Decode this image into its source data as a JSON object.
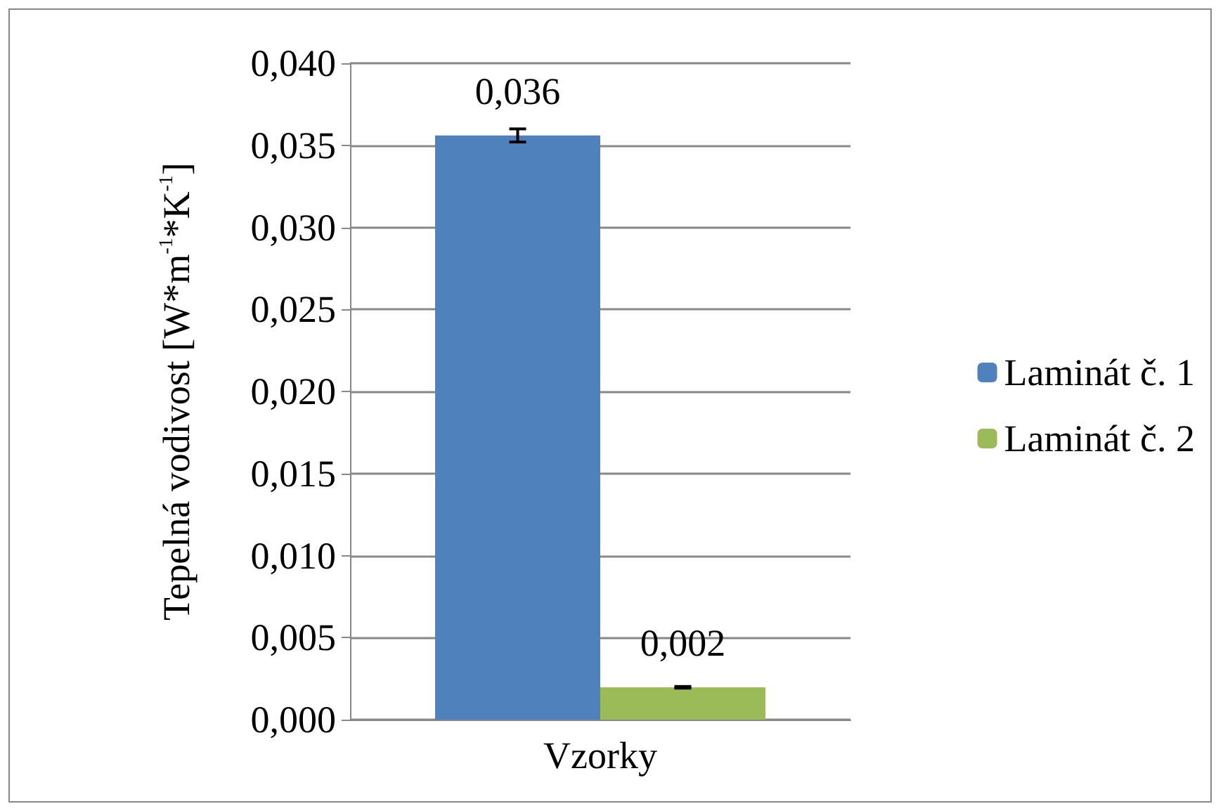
{
  "chart_data": {
    "type": "bar",
    "ylabel": "Tepelná vodivost [W*m$^{-1}$*K$^{-1}$]",
    "categories": [
      "Vzorky"
    ],
    "series": [
      {
        "name": "Laminát č. 1",
        "color": "#4f81bd",
        "values": [
          0.0356
        ],
        "errors": [
          0.0004
        ],
        "value_labels": [
          "0,036"
        ]
      },
      {
        "name": "Laminát č. 2",
        "color": "#9bbb59",
        "values": [
          0.00197
        ],
        "errors": [
          5e-05
        ],
        "value_labels": [
          "0,002"
        ]
      }
    ],
    "ylim": [
      0,
      0.04
    ],
    "yticks": [
      {
        "value": 0,
        "label": "0,000"
      },
      {
        "value": 0.005,
        "label": "0,005"
      },
      {
        "value": 0.01,
        "label": "0,010"
      },
      {
        "value": 0.015,
        "label": "0,015"
      },
      {
        "value": 0.02,
        "label": "0,020"
      },
      {
        "value": 0.025,
        "label": "0,025"
      },
      {
        "value": 0.03,
        "label": "0,030"
      },
      {
        "value": 0.035,
        "label": "0,035"
      },
      {
        "value": 0.04,
        "label": "0,040"
      }
    ],
    "grid": "y",
    "legend": "right"
  }
}
